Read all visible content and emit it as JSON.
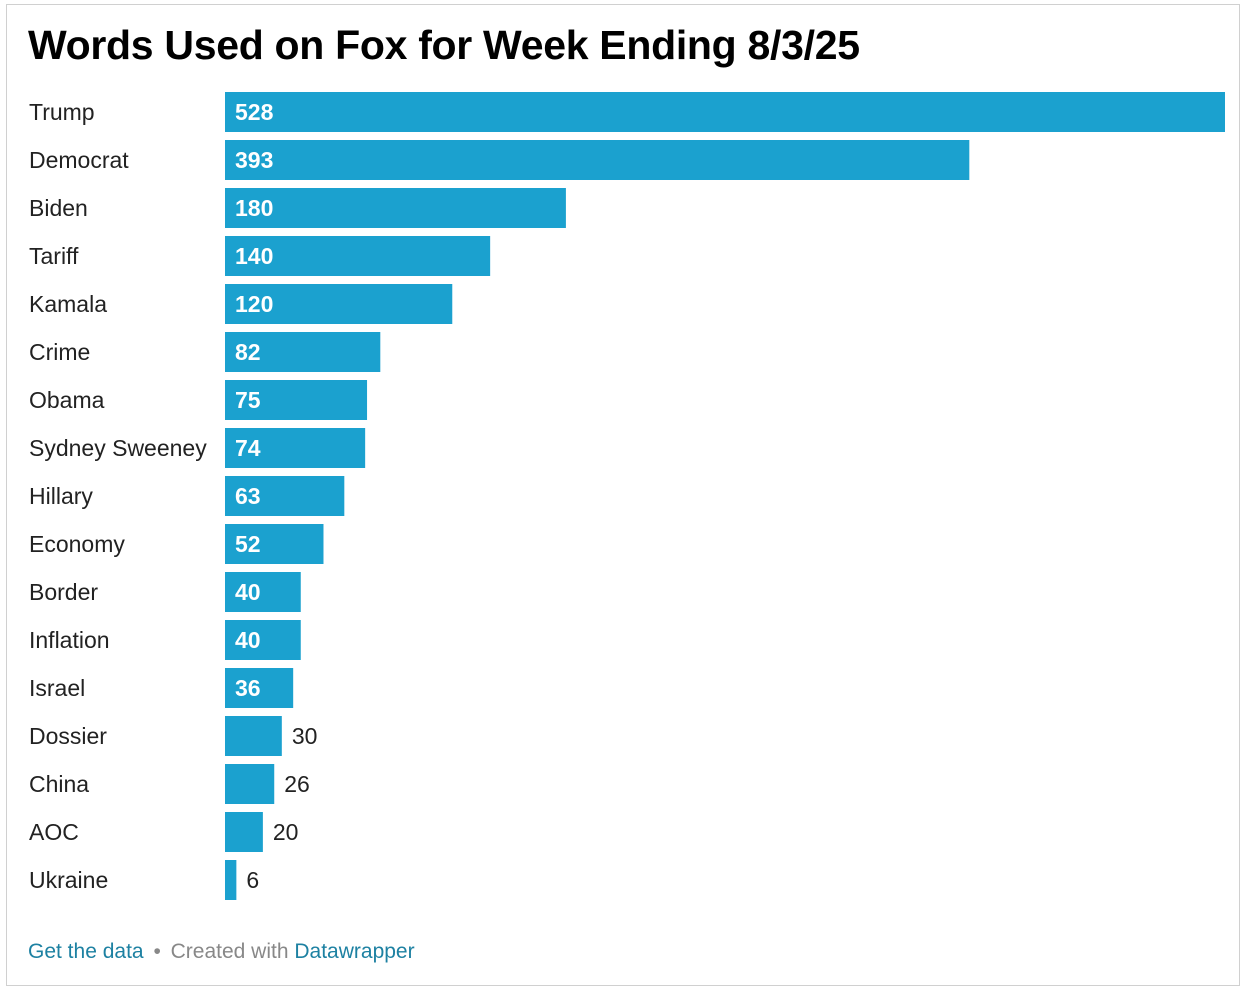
{
  "chart_data": {
    "type": "bar",
    "orientation": "horizontal",
    "title": "Words Used on Fox for Week Ending 8/3/25",
    "categories": [
      "Trump",
      "Democrat",
      "Biden",
      "Tariff",
      "Kamala",
      "Crime",
      "Obama",
      "Sydney Sweeney",
      "Hillary",
      "Economy",
      "Border",
      "Inflation",
      "Israel",
      "Dossier",
      "China",
      "AOC",
      "Ukraine"
    ],
    "values": [
      528,
      393,
      180,
      140,
      120,
      82,
      75,
      74,
      63,
      52,
      40,
      40,
      36,
      30,
      26,
      20,
      6
    ],
    "xlim": [
      0,
      528
    ],
    "grid": false,
    "bar_color": "#1ba1cf",
    "xlabel": "",
    "ylabel": ""
  },
  "footer": {
    "get_data": "Get the data",
    "separator": "•",
    "created_with": "Created with",
    "tool": "Datawrapper"
  }
}
